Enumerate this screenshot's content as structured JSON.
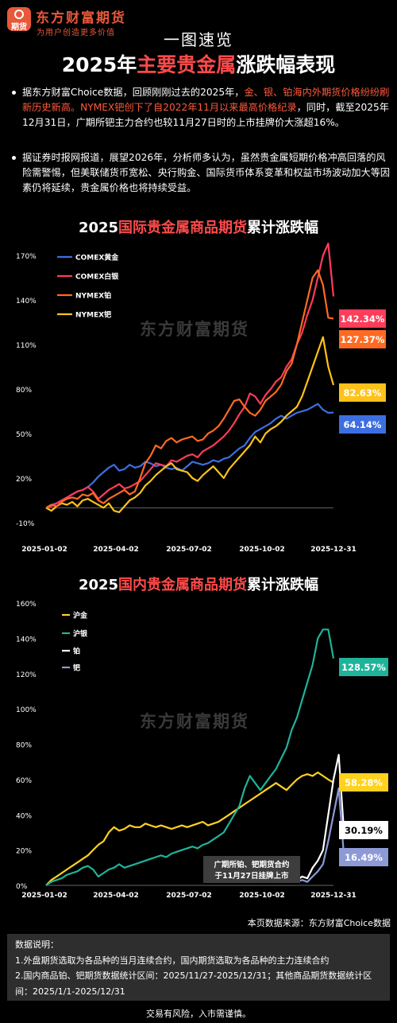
{
  "header": {
    "logo_text": "期货",
    "brand": "东方财富期货",
    "slogan": "为用户创造更多价值",
    "kicker": "一图速览",
    "title_pre": "2025年",
    "title_hl": "主要贵金属",
    "title_post": "涨跌幅表现"
  },
  "paragraphs": {
    "p1_a": "据东方财富Choice数据，回顾刚刚过去的2025年，",
    "p1_b": "金、银、铂海内外期货价格纷纷刷新历史新高。NYMEX钯创下了自2022年11月以来最高价格纪录",
    "p1_c": "，同时，截至2025年12月31日，广期所钯主力合约也较11月27日时的上市挂牌价大涨超16%。",
    "p2": "据证券时报网报道，展望2026年，分析师多认为，虽然贵金属短期价格冲高回落的风险需警惕，但美联储货币宽松、央行购金、国际货币体系变革和权益市场波动加大等因素仍将延续，贵金属价格也将持续受益。"
  },
  "colors": {
    "accent": "#ff4a4a",
    "brand": "#e8583a",
    "comex_gold": "#3d6fe0",
    "comex_silver": "#ff3c5a",
    "nymex_pt": "#ff6a22",
    "nymex_pd": "#ffc21a",
    "shfe_au": "#ffd21f",
    "shfe_ag": "#1fb39a",
    "gfex_pt": "#ffffff",
    "gfex_pd": "#8e9ad6"
  },
  "watermark": "东方财富期货",
  "chart_data": [
    {
      "type": "line",
      "title_pre": "2025",
      "title_hl": "国际贵金属商品期货",
      "title_post": "累计涨跌幅",
      "y_unit": "%",
      "ylim": [
        -10,
        170
      ],
      "yticks": [
        170,
        140,
        110,
        80,
        50,
        20,
        -10
      ],
      "xticks": [
        "2025-01-02",
        "2025-04-02",
        "2025-07-02",
        "2025-10-02",
        "2025-12-31"
      ],
      "legend_position": "top-left",
      "series": [
        {
          "name": "COMEX黄金",
          "color_key": "comex_gold",
          "end_label": "64.14%",
          "end_value": 64.14,
          "values": [
            0,
            2,
            3,
            5,
            7,
            9,
            11,
            12,
            14,
            17,
            21,
            24,
            27,
            29,
            25,
            26,
            29,
            27,
            28,
            31,
            30,
            28,
            29,
            27,
            26,
            27,
            25,
            28,
            31,
            30,
            29,
            30,
            32,
            31,
            33,
            34,
            37,
            40,
            42,
            47,
            51,
            53,
            55,
            57,
            60,
            62,
            60,
            62,
            64,
            65,
            66,
            68,
            70,
            66,
            64,
            64.14
          ]
        },
        {
          "name": "COMEX白银",
          "color_key": "comex_silver",
          "end_label": "142.34%",
          "end_value": 142.34,
          "values": [
            0,
            1,
            3,
            5,
            7,
            9,
            11,
            12,
            14,
            11,
            6,
            9,
            12,
            14,
            16,
            13,
            14,
            16,
            18,
            22,
            26,
            30,
            29,
            28,
            32,
            31,
            33,
            35,
            36,
            34,
            38,
            40,
            42,
            45,
            48,
            52,
            57,
            63,
            68,
            77,
            75,
            70,
            76,
            80,
            85,
            88,
            95,
            100,
            110,
            118,
            130,
            140,
            155,
            170,
            178,
            142.34
          ]
        },
        {
          "name": "NYMEX铂",
          "color_key": "nymex_pt",
          "end_label": "127.37%",
          "end_value": 127.37,
          "values": [
            0,
            2,
            1,
            4,
            6,
            7,
            6,
            9,
            8,
            10,
            5,
            3,
            6,
            8,
            10,
            12,
            9,
            11,
            20,
            30,
            35,
            42,
            40,
            45,
            47,
            44,
            46,
            47,
            48,
            45,
            46,
            50,
            52,
            55,
            60,
            66,
            72,
            73,
            68,
            64,
            62,
            66,
            72,
            75,
            78,
            83,
            92,
            97,
            110,
            125,
            140,
            155,
            160,
            150,
            128,
            127.37
          ]
        },
        {
          "name": "NYMEX钯",
          "color_key": "nymex_pd",
          "end_label": "82.63%",
          "end_value": 82.63,
          "values": [
            0,
            -2,
            1,
            3,
            2,
            4,
            1,
            5,
            6,
            4,
            2,
            0,
            3,
            -2,
            -3,
            1,
            5,
            7,
            10,
            15,
            18,
            22,
            25,
            28,
            30,
            26,
            25,
            24,
            20,
            18,
            22,
            25,
            28,
            24,
            20,
            26,
            30,
            34,
            38,
            42,
            48,
            44,
            50,
            53,
            55,
            58,
            62,
            65,
            68,
            75,
            85,
            95,
            105,
            115,
            95,
            82.63
          ]
        }
      ]
    },
    {
      "type": "line",
      "title_pre": "2025",
      "title_hl": "国内贵金属商品期货",
      "title_post": "累计涨跌幅",
      "y_unit": "%",
      "ylim": [
        0,
        160
      ],
      "yticks": [
        160,
        140,
        120,
        100,
        80,
        60,
        40,
        20,
        0
      ],
      "xticks": [
        "2025-01-02",
        "2025-04-02",
        "2025-07-02",
        "2025-10-02",
        "2025-12-31"
      ],
      "legend_position": "top-left",
      "annotation": [
        "广期所铂、钯期货合约",
        "于11月27日挂牌上市"
      ],
      "series": [
        {
          "name": "沪金",
          "color_key": "shfe_au",
          "end_label": "58.28%",
          "end_value": 58.28,
          "values": [
            0,
            3,
            5,
            7,
            9,
            11,
            13,
            15,
            17,
            20,
            23,
            25,
            30,
            33,
            31,
            32,
            34,
            33,
            33,
            35,
            34,
            33,
            34,
            33,
            32,
            33,
            34,
            33,
            34,
            35,
            36,
            34,
            35,
            36,
            38,
            40,
            42,
            44,
            46,
            48,
            50,
            52,
            54,
            56,
            58,
            56,
            54,
            57,
            60,
            62,
            63,
            62,
            64,
            62,
            60,
            58.28
          ]
        },
        {
          "name": "沪银",
          "color_key": "shfe_ag",
          "end_label": "128.57%",
          "end_value": 128.57,
          "values": [
            0,
            2,
            3,
            4,
            6,
            7,
            8,
            10,
            11,
            9,
            5,
            7,
            9,
            10,
            12,
            10,
            11,
            12,
            13,
            14,
            15,
            16,
            17,
            16,
            18,
            19,
            20,
            21,
            22,
            21,
            23,
            24,
            26,
            28,
            30,
            35,
            40,
            45,
            55,
            62,
            58,
            54,
            58,
            62,
            66,
            72,
            78,
            88,
            95,
            105,
            115,
            125,
            140,
            145,
            145,
            128.57
          ]
        },
        {
          "name": "铂",
          "color_key": "gfex_pt",
          "end_label": "30.19%",
          "end_value": 30.19,
          "start_index": 48,
          "values": [
            3,
            5,
            4,
            10,
            14,
            20,
            40,
            60,
            74,
            30.19
          ]
        },
        {
          "name": "钯",
          "color_key": "gfex_pd",
          "end_label": "16.49%",
          "end_value": 16.49,
          "start_index": 48,
          "values": [
            2,
            3,
            2,
            5,
            8,
            12,
            25,
            40,
            55,
            16.49
          ]
        }
      ]
    }
  ],
  "footer": {
    "source": "本页数据来源：东方财富Choice数据",
    "notes_title": "数据说明：",
    "note1": "1.外盘期货选取为各品种的当月连续合约，国内期货选取为各品种的主力连续合约",
    "note2": "2.国内商品铂、钯期货数据统计区间：2025/11/27-2025/12/31；其他商品期货数据统计区间：2025/1/1-2025/12/31",
    "risk": "交易有风险，入市需谨慎。"
  }
}
